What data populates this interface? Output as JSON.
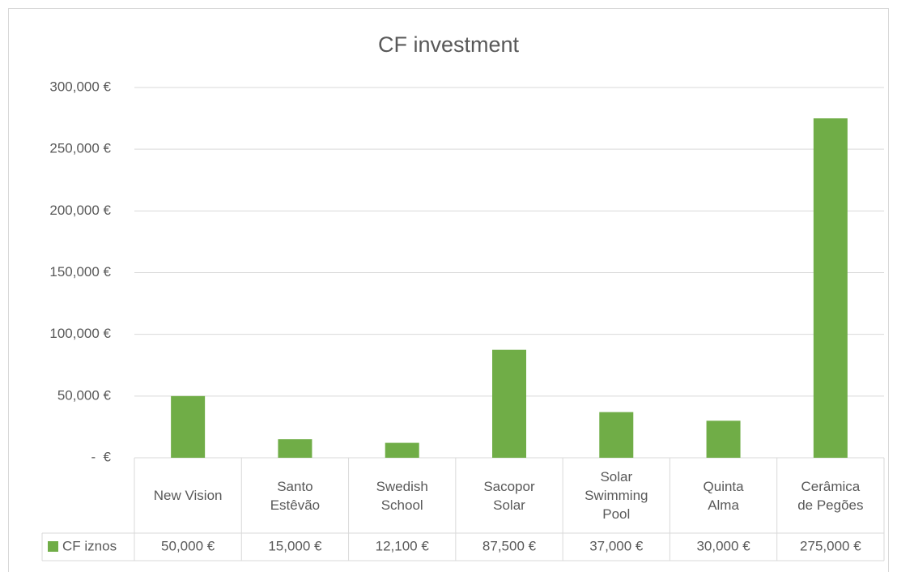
{
  "chart_data": {
    "type": "bar",
    "title": "CF investment",
    "categories": [
      "New Vision",
      "Santo Estêvão",
      "Swedish School",
      "Sacopor Solar",
      "Solar Swimming Pool",
      "Quinta Alma",
      "Cerâmica de Pegões"
    ],
    "series": [
      {
        "name": "CF iznos",
        "color": "#70ad47",
        "values": [
          50000,
          15000,
          12100,
          87500,
          37000,
          30000,
          275000
        ],
        "value_labels": [
          "50,000 €",
          "15,000 €",
          "12,100 €",
          "87,500 €",
          "37,000 €",
          "30,000 €",
          "275,000 €"
        ]
      }
    ],
    "ylim": [
      0,
      300000
    ],
    "yticks": [
      {
        "value": 0,
        "label": "-  €"
      },
      {
        "value": 50000,
        "label": "50,000 €"
      },
      {
        "value": 100000,
        "label": "100,000 €"
      },
      {
        "value": 150000,
        "label": "150,000 €"
      },
      {
        "value": 200000,
        "label": "200,000 €"
      },
      {
        "value": 250000,
        "label": "250,000 €"
      },
      {
        "value": 300000,
        "label": "300,000 €"
      }
    ],
    "grid": true
  }
}
